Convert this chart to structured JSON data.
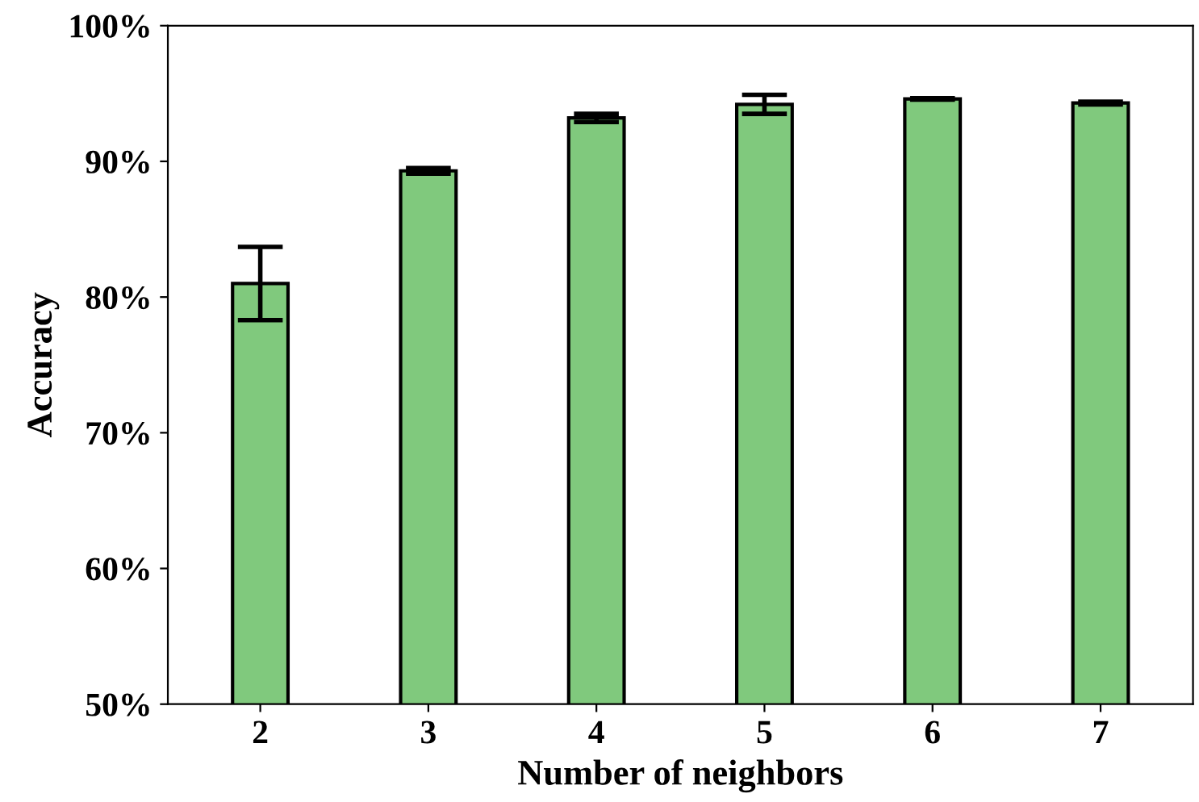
{
  "chart_data": {
    "type": "bar",
    "xlabel": "Number of neighbors",
    "ylabel": "Accuracy",
    "categories": [
      "2",
      "3",
      "4",
      "5",
      "6",
      "7"
    ],
    "values": [
      81.0,
      89.3,
      93.2,
      94.2,
      94.6,
      94.3
    ],
    "errors": [
      2.7,
      0.2,
      0.3,
      0.7,
      0.05,
      0.1
    ],
    "color": "#80c97d",
    "ylim": [
      50,
      100
    ],
    "yticks": [
      {
        "value": 50,
        "label": "50%"
      },
      {
        "value": 60,
        "label": "60%"
      },
      {
        "value": 70,
        "label": "70%"
      },
      {
        "value": 80,
        "label": "80%"
      },
      {
        "value": 90,
        "label": "90%"
      },
      {
        "value": 100,
        "label": "100%"
      }
    ],
    "grid": false
  }
}
